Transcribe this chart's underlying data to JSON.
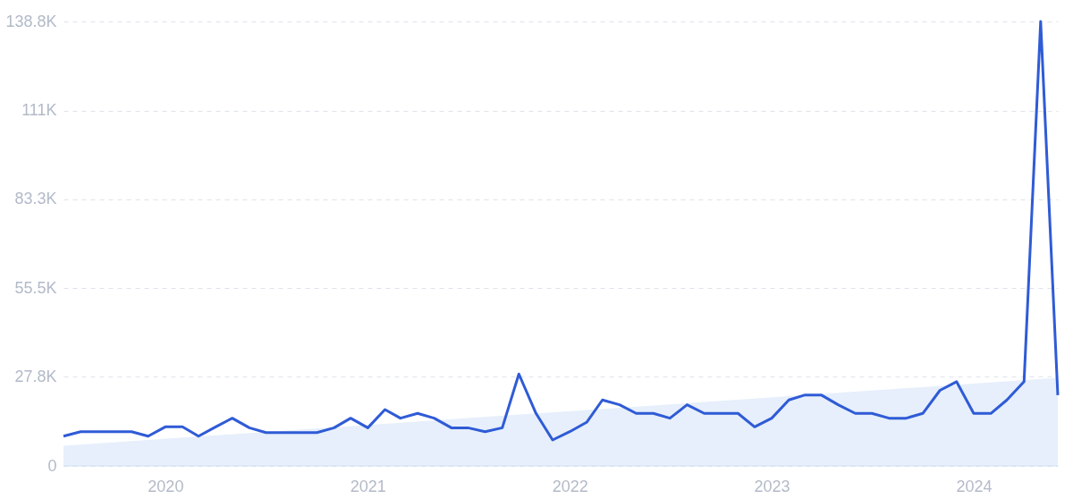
{
  "chart_data": {
    "type": "line",
    "x": [
      "2019-07",
      "2019-08",
      "2019-09",
      "2019-10",
      "2019-11",
      "2019-12",
      "2020-01",
      "2020-02",
      "2020-03",
      "2020-04",
      "2020-05",
      "2020-06",
      "2020-07",
      "2020-08",
      "2020-09",
      "2020-10",
      "2020-11",
      "2020-12",
      "2021-01",
      "2021-02",
      "2021-03",
      "2021-04",
      "2021-05",
      "2021-06",
      "2021-07",
      "2021-08",
      "2021-09",
      "2021-10",
      "2021-11",
      "2021-12",
      "2022-01",
      "2022-02",
      "2022-03",
      "2022-04",
      "2022-05",
      "2022-06",
      "2022-07",
      "2022-08",
      "2022-09",
      "2022-10",
      "2022-11",
      "2022-12",
      "2023-01",
      "2023-02",
      "2023-03",
      "2023-04",
      "2023-05",
      "2023-06",
      "2023-07",
      "2023-08",
      "2023-09",
      "2023-10",
      "2023-11",
      "2023-12",
      "2024-01",
      "2024-02",
      "2024-03",
      "2024-04",
      "2024-05",
      "2024-06"
    ],
    "series": [
      {
        "type": "area",
        "color": "#e6effb",
        "x": [
          "2019-07",
          "2024-06"
        ],
        "values": [
          6300,
          27500
        ]
      },
      {
        "color": "#2f5bd6",
        "values": [
          9300,
          10700,
          10700,
          10700,
          10700,
          9300,
          12200,
          12200,
          9300,
          12200,
          14900,
          11900,
          10400,
          10400,
          10400,
          10400,
          11900,
          14900,
          11900,
          17600,
          14900,
          16400,
          14900,
          11900,
          11900,
          10700,
          11900,
          28700,
          16400,
          8100,
          10700,
          13700,
          20600,
          19100,
          16400,
          16400,
          14900,
          19100,
          16400,
          16400,
          16400,
          12200,
          14900,
          20600,
          22100,
          22100,
          19100,
          16400,
          16400,
          14900,
          14900,
          16400,
          23600,
          26300,
          16400,
          16400,
          20600,
          26300,
          138800,
          22100
        ]
      }
    ],
    "xlim": [
      "2019-07",
      "2024-06"
    ],
    "xticks": [
      {
        "value": "2020",
        "label": "2020"
      },
      {
        "value": "2021",
        "label": "2021"
      },
      {
        "value": "2022",
        "label": "2022"
      },
      {
        "value": "2023",
        "label": "2023"
      },
      {
        "value": "2024",
        "label": "2024"
      }
    ],
    "ylim": [
      0,
      138800
    ],
    "yticks": [
      0,
      {
        "value": 27800,
        "label": "27.8K"
      },
      {
        "value": 55500,
        "label": "55.5K"
      },
      {
        "value": 83300,
        "label": "83.3K"
      },
      {
        "value": 111000,
        "label": "111K"
      },
      {
        "value": 138800,
        "label": "138.8K"
      }
    ],
    "grid": "y",
    "marker": "none",
    "line_style": "solid"
  }
}
